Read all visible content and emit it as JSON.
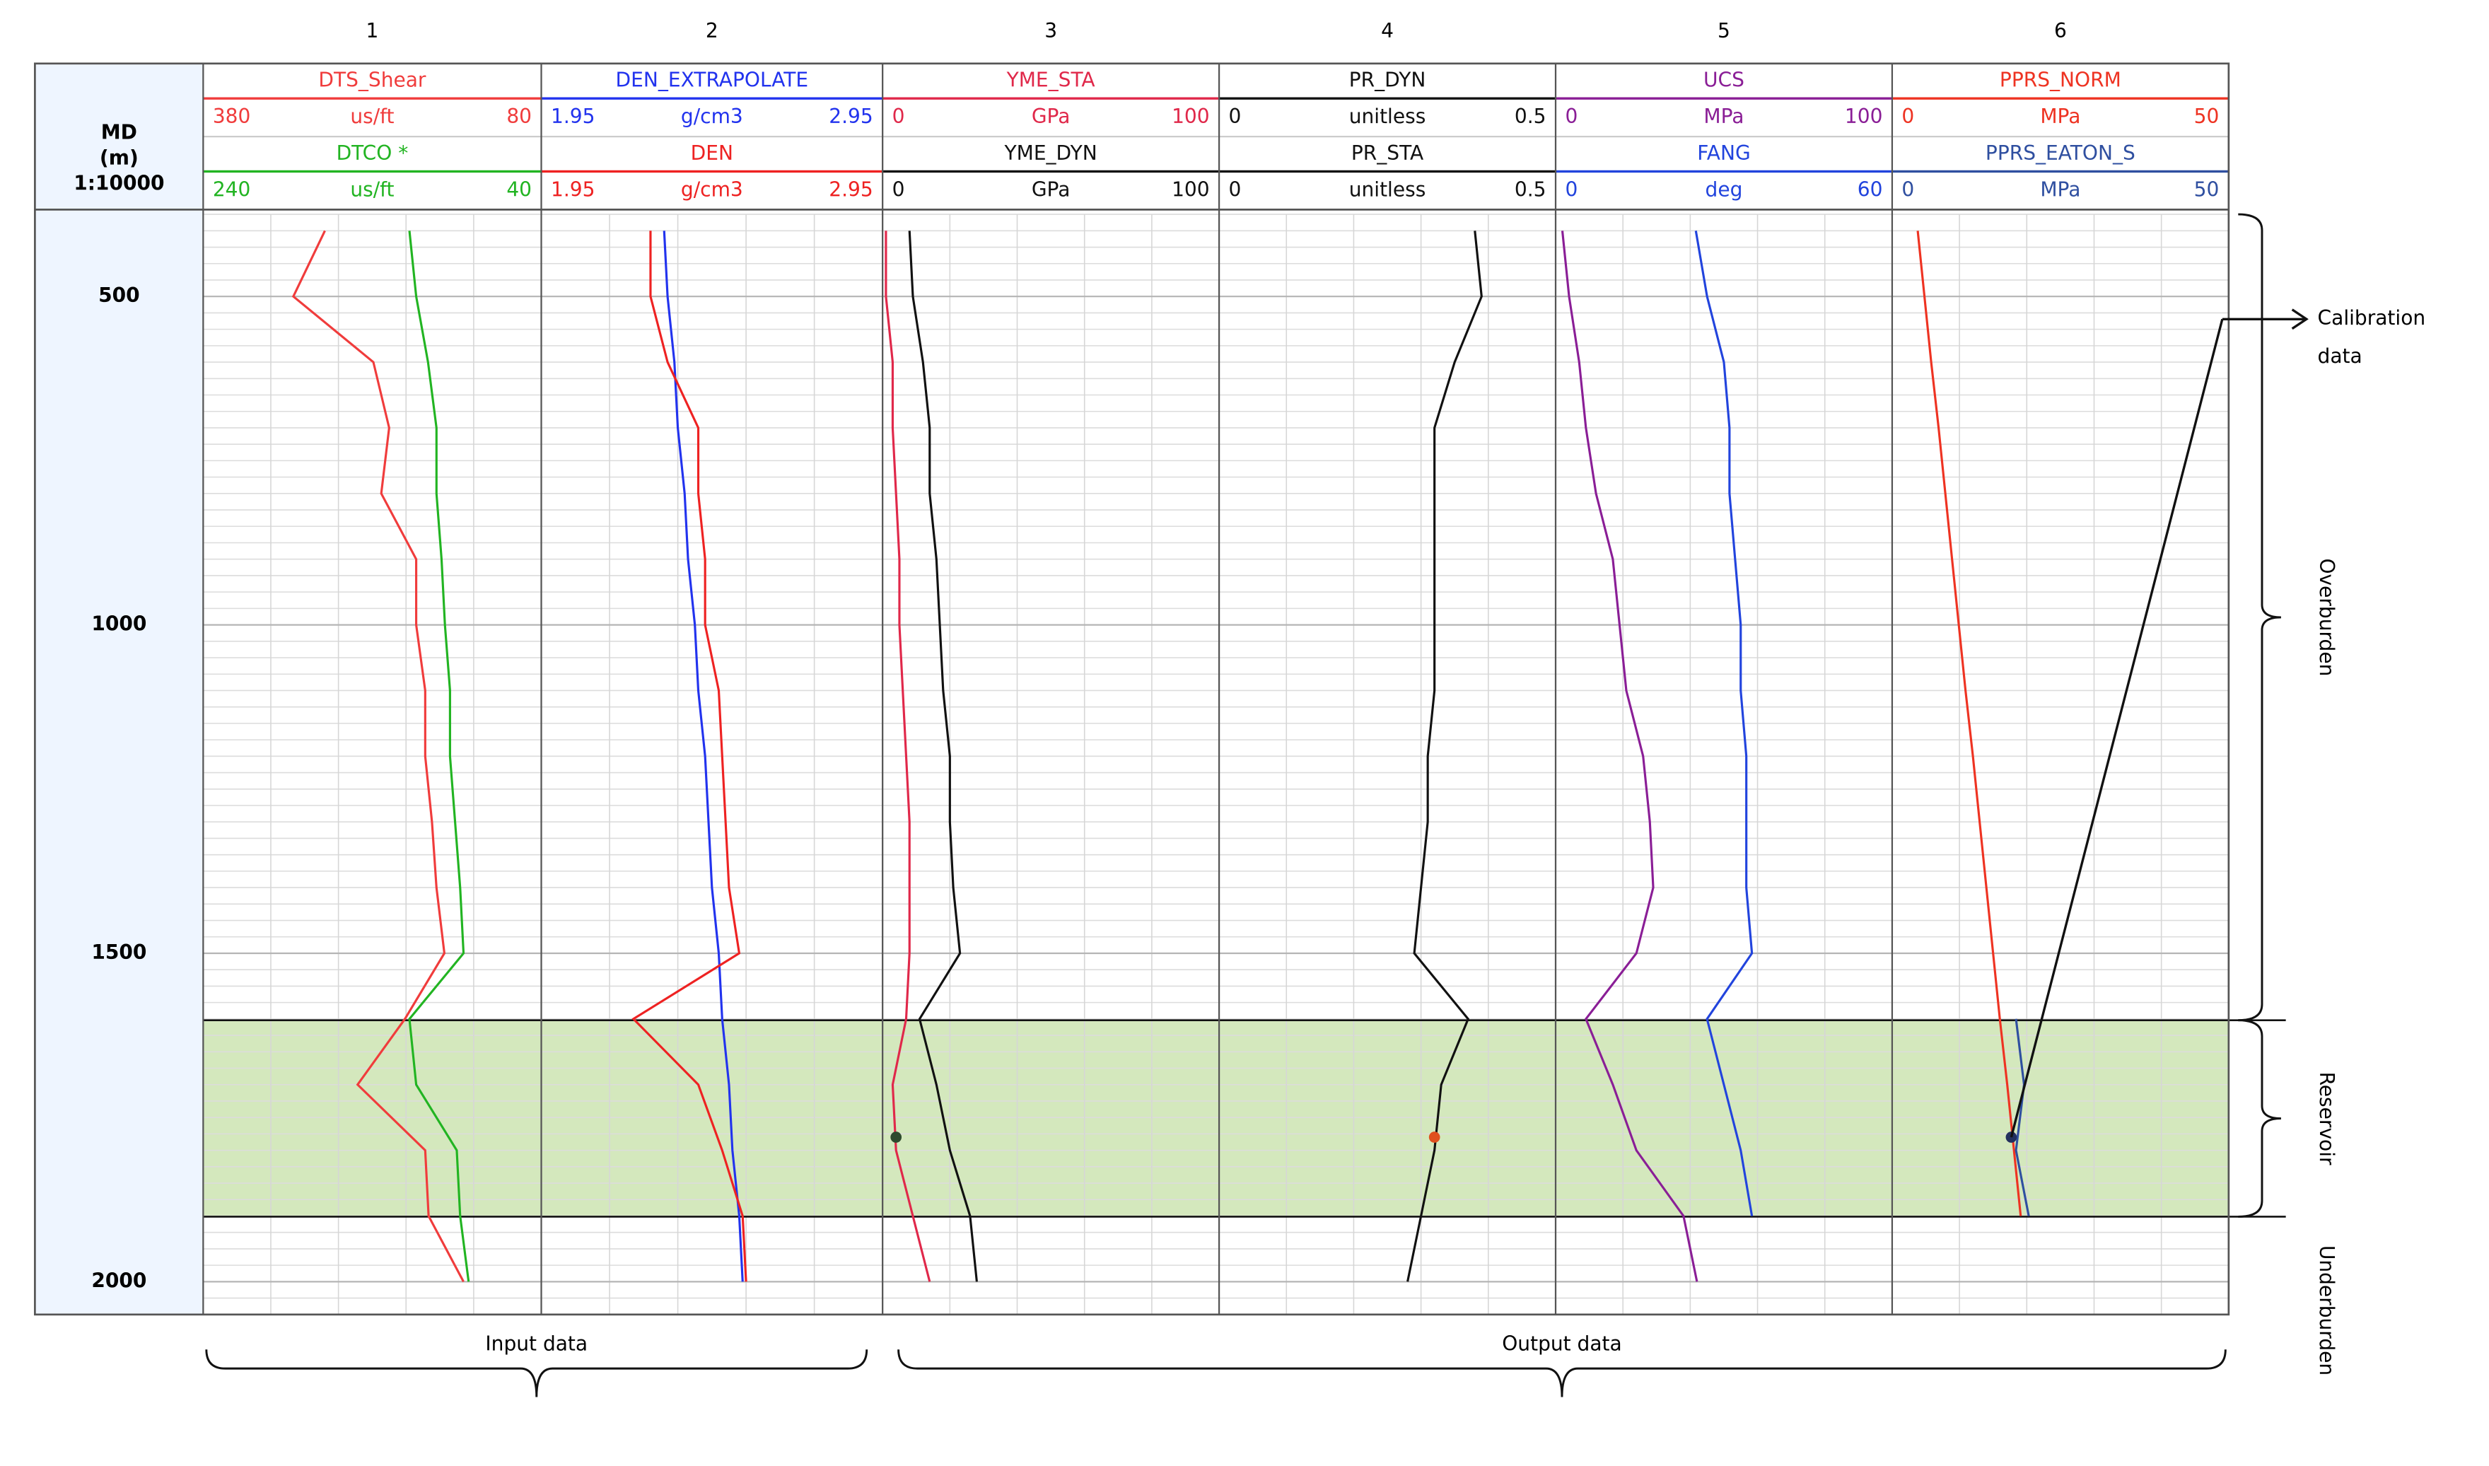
{
  "chart_data": {
    "type": "well-log",
    "depth_axis": {
      "label_lines": [
        "MD",
        "(m)",
        "1:10000"
      ],
      "ylim": [
        375,
        2050
      ],
      "yticks": [
        500,
        1000,
        1500,
        2000
      ],
      "minor_grid_step": 25
    },
    "depth": [
      400,
      500,
      600,
      700,
      800,
      900,
      1000,
      1100,
      1200,
      1300,
      1400,
      1500,
      1600,
      1700,
      1800,
      1900,
      2000
    ],
    "tracks": [
      {
        "title": "1",
        "series": [
          {
            "name": "DTS_Shear",
            "color": "#f03c3c",
            "unit": "us/ft",
            "xlim": [
              380,
              80
            ],
            "values": [
              272,
              300,
              229,
              215,
              222,
              191,
              191,
              183,
              183,
              177,
              173,
              166,
              201,
              243,
              183,
              180,
              149
            ]
          },
          {
            "name": "DTCO *",
            "color": "#22b422",
            "unit": "us/ft",
            "xlim": [
              240,
              40
            ],
            "values": [
              118,
              114,
              107,
              102,
              102,
              99,
              97,
              94,
              94,
              91,
              88,
              86,
              118,
              114,
              90,
              88,
              83
            ]
          }
        ]
      },
      {
        "title": "2",
        "series": [
          {
            "name": "DEN_EXTRAPOLATE",
            "color": "#2233ee",
            "unit": "g/cm3",
            "xlim": [
              1.95,
              2.95
            ],
            "values": [
              2.31,
              2.32,
              2.34,
              2.35,
              2.37,
              2.38,
              2.4,
              2.41,
              2.43,
              2.44,
              2.45,
              2.47,
              2.48,
              2.5,
              2.51,
              2.53,
              2.54
            ]
          },
          {
            "name": "DEN",
            "color": "#ee2222",
            "unit": "g/cm3",
            "xlim": [
              1.95,
              2.95
            ],
            "values": [
              2.27,
              2.27,
              2.32,
              2.41,
              2.41,
              2.43,
              2.43,
              2.47,
              2.48,
              2.49,
              2.5,
              2.53,
              2.22,
              2.41,
              2.48,
              2.54,
              2.55
            ]
          }
        ]
      },
      {
        "title": "3",
        "series": [
          {
            "name": "YME_STA",
            "color": "#e0284a",
            "point_color": "#2e4a2e",
            "unit": "GPa",
            "xlim": [
              0,
              100
            ],
            "values": [
              1,
              1,
              3,
              3,
              4,
              5,
              5,
              6,
              7,
              8,
              8,
              8,
              7,
              3,
              4,
              9,
              14
            ],
            "points": [
              {
                "depth": 1780,
                "value": 4
              }
            ]
          },
          {
            "name": "YME_DYN",
            "color": "#111111",
            "unit": "GPa",
            "xlim": [
              0,
              100
            ],
            "values": [
              8,
              9,
              12,
              14,
              14,
              16,
              17,
              18,
              20,
              20,
              21,
              23,
              11,
              16,
              20,
              26,
              28
            ]
          }
        ]
      },
      {
        "title": "4",
        "series": [
          {
            "name": "PR_DYN",
            "color": "#111111",
            "unit": "unitless",
            "xlim": [
              0,
              0.5
            ],
            "values": [
              0.38,
              0.39,
              0.35,
              0.32,
              0.32,
              0.32,
              0.32,
              0.32,
              0.31,
              0.31,
              0.3,
              0.29,
              0.37,
              0.33,
              0.32,
              0.3,
              0.28
            ]
          },
          {
            "name": "PR_STA",
            "color": "#111111",
            "point_color": "#e0501e",
            "unit": "unitless",
            "xlim": [
              0,
              0.5
            ],
            "points": [
              {
                "depth": 1780,
                "value": 0.32
              }
            ]
          }
        ]
      },
      {
        "title": "5",
        "series": [
          {
            "name": "UCS",
            "color": "#8a1e96",
            "unit": "MPa",
            "xlim": [
              0,
              100
            ],
            "values": [
              2,
              4,
              7,
              9,
              12,
              17,
              19,
              21,
              26,
              28,
              29,
              24,
              9,
              17,
              24,
              38,
              42
            ]
          },
          {
            "name": "FANG",
            "color": "#2244dd",
            "unit": "deg",
            "xlim": [
              0,
              60
            ],
            "values": [
              25,
              27,
              30,
              31,
              31,
              32,
              33,
              33,
              34,
              34,
              34,
              35,
              27,
              30,
              33,
              35,
              null
            ]
          }
        ]
      },
      {
        "title": "6",
        "series": [
          {
            "name": "PPRS_NORM",
            "color": "#ee3322",
            "unit": "MPa",
            "xlim": [
              0,
              50
            ],
            "values": [
              3.8,
              4.8,
              5.8,
              6.9,
              7.9,
              8.9,
              9.9,
              10.9,
              12.0,
              13.0,
              14.0,
              15.0,
              16.0,
              17.1,
              18.1,
              19.1,
              null
            ]
          },
          {
            "name": "PPRS_EATON_S",
            "color": "#2f4fa0",
            "point_color": "#23305e",
            "unit": "MPa",
            "xlim": [
              0,
              50
            ],
            "values": [
              null,
              null,
              null,
              null,
              null,
              null,
              null,
              null,
              null,
              null,
              null,
              null,
              18.4,
              19.6,
              18.4,
              20.3,
              null
            ],
            "points": [
              {
                "depth": 1780,
                "value": 17.7
              }
            ]
          }
        ]
      }
    ],
    "zones": [
      {
        "label": "Overburden",
        "top": 375,
        "bottom": 1602
      },
      {
        "label": "Reservoir",
        "top": 1602,
        "bottom": 1901,
        "fill": "#d4e8bd"
      },
      {
        "label": "Underburden",
        "top": 1901,
        "bottom": 2050
      }
    ],
    "calibration_label": [
      "Calibration",
      "data"
    ],
    "groups": [
      {
        "label": "Input data",
        "tracks": [
          0,
          1
        ]
      },
      {
        "label": "Output data",
        "tracks": [
          2,
          5
        ]
      }
    ]
  }
}
